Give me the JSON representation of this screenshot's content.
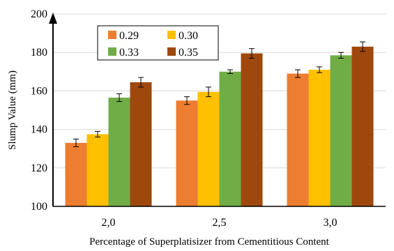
{
  "chart_data": {
    "type": "bar",
    "title": "",
    "xlabel": "Percentage of Superplatisizer from Cementitious Content",
    "ylabel": "Slump Value (mm)",
    "categories": [
      "2,0",
      "2,5",
      "3,0"
    ],
    "ylim": [
      100,
      200
    ],
    "yticks": [
      "100",
      "120",
      "140",
      "160",
      "180",
      "200"
    ],
    "grid": true,
    "legend_position": "top-left",
    "series": [
      {
        "name": "0.29",
        "color": "#ED7D31",
        "values": [
          133,
          155,
          169
        ],
        "errors": [
          2,
          2,
          2
        ]
      },
      {
        "name": "0.30",
        "color": "#FFC000",
        "values": [
          137.5,
          159.5,
          171
        ],
        "errors": [
          1.5,
          2.5,
          1.5
        ]
      },
      {
        "name": "0.33",
        "color": "#70AD47",
        "values": [
          156.5,
          170,
          178.5
        ],
        "errors": [
          2,
          1,
          1.5
        ]
      },
      {
        "name": "0.35",
        "color": "#9E480E",
        "values": [
          164.5,
          179.5,
          183
        ],
        "errors": [
          2.5,
          2.5,
          2.5
        ]
      }
    ]
  }
}
